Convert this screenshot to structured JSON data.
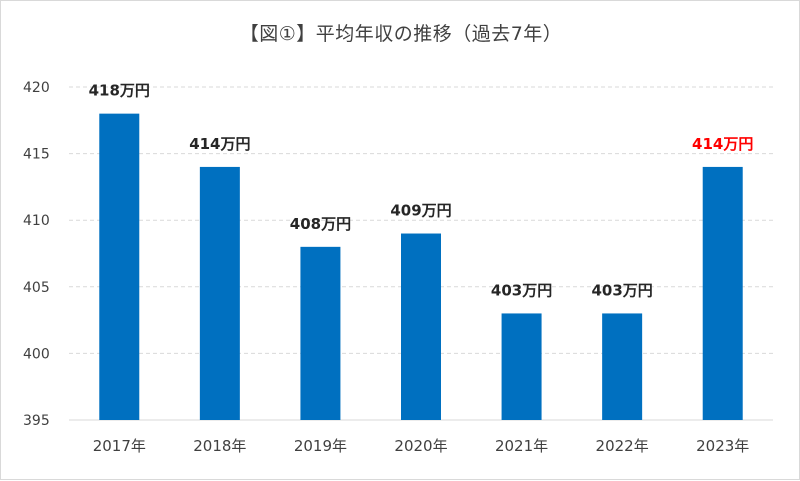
{
  "chart_data": {
    "type": "bar",
    "title": "【図①】平均年収の推移（過去7年）",
    "categories": [
      "2017年",
      "2018年",
      "2019年",
      "2020年",
      "2021年",
      "2022年",
      "2023年"
    ],
    "values": [
      418,
      414,
      408,
      409,
      403,
      403,
      414
    ],
    "data_labels": [
      "418万円",
      "414万円",
      "408万円",
      "409万円",
      "403万円",
      "403万円",
      "414万円"
    ],
    "highlight_index": 6,
    "ylim": [
      395,
      420
    ],
    "yticks": [
      395,
      400,
      405,
      410,
      415,
      420
    ],
    "xlabel": "",
    "ylabel": "",
    "grid": "horizontal-dashed",
    "legend": "none",
    "colors": {
      "bar": "#0070c0",
      "label": "#262626",
      "highlight_label": "#ff0000",
      "tick": "#404040",
      "grid": "#d9d9d9"
    }
  }
}
